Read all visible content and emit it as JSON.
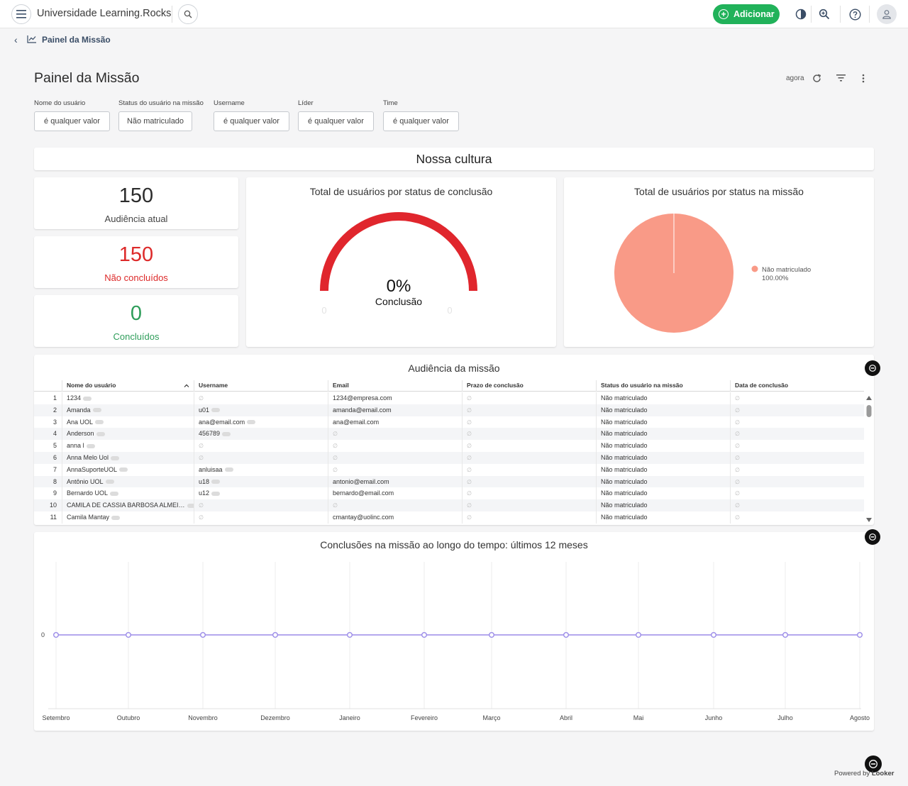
{
  "header": {
    "app_title": "Universidade Learning.Rocks",
    "add_label": "Adicionar"
  },
  "breadcrumb": {
    "label": "Painel da Missão"
  },
  "dashboard": {
    "title": "Painel da Missão",
    "refresh_time": "agora"
  },
  "filters": [
    {
      "label": "Nome do usuário",
      "value": "é qualquer valor"
    },
    {
      "label": "Status do usuário na missão",
      "value": "Não matriculado"
    },
    {
      "label": "Username",
      "value": "é qualquer valor"
    },
    {
      "label": "Líder",
      "value": "é qualquer valor"
    },
    {
      "label": "Time",
      "value": "é qualquer valor"
    }
  ],
  "section_title": "Nossa cultura",
  "kpis": [
    {
      "value": "150",
      "label": "Audiência atual",
      "color": "#2c2c2c"
    },
    {
      "value": "150",
      "label": "Não concluídos",
      "color": "#dd2a2a"
    },
    {
      "value": "0",
      "label": "Concluídos",
      "color": "#2e9d5a"
    }
  ],
  "gauge": {
    "title": "Total de usuários por status de conclusão",
    "value_text": "0%",
    "label": "Conclusão",
    "min_label": "0",
    "max_label": "0",
    "fraction": 0,
    "arc_color": "#e0262d"
  },
  "pie": {
    "title": "Total de usuários por status na missão",
    "legend": [
      {
        "name": "Não matriculado",
        "pct": "100.00%",
        "color": "#f99a87"
      }
    ]
  },
  "table": {
    "title": "Audiência da missão",
    "columns": [
      "Nome do usuário",
      "Username",
      "Email",
      "Prazo de conclusão",
      "Status do usuário na missão",
      "Data de conclusão"
    ],
    "null_glyph": "∅",
    "rows": [
      {
        "n": "1",
        "name": "1234",
        "username": "",
        "email": "1234@empresa.com",
        "status": "Não matriculado"
      },
      {
        "n": "2",
        "name": "Amanda",
        "username": "u01",
        "email": "amanda@email.com",
        "status": "Não matriculado"
      },
      {
        "n": "3",
        "name": "Ana UOL",
        "username": "ana@email.com",
        "email": "ana@email.com",
        "status": "Não matriculado"
      },
      {
        "n": "4",
        "name": "Anderson",
        "username": "456789",
        "email": "",
        "status": "Não matriculado"
      },
      {
        "n": "5",
        "name": "anna l",
        "username": "",
        "email": "",
        "status": "Não matriculado"
      },
      {
        "n": "6",
        "name": "Anna Melo Uol",
        "username": "",
        "email": "",
        "status": "Não matriculado"
      },
      {
        "n": "7",
        "name": "AnnaSuporteUOL",
        "username": "anluisaa",
        "email": "",
        "status": "Não matriculado"
      },
      {
        "n": "8",
        "name": "Antônio UOL",
        "username": "u18",
        "email": "antonio@email.com",
        "status": "Não matriculado"
      },
      {
        "n": "9",
        "name": "Bernardo UOL",
        "username": "u12",
        "email": "bernardo@email.com",
        "status": "Não matriculado"
      },
      {
        "n": "10",
        "name": "CAMILA DE CASSIA BARBOSA ALMEI…",
        "username": "",
        "email": "",
        "status": "Não matriculado"
      },
      {
        "n": "11",
        "name": "Camila Mantay",
        "username": "",
        "email": "cmantay@uolinc.com",
        "status": "Não matriculado"
      }
    ]
  },
  "chart_data": {
    "type": "line",
    "title": "Conclusões na missão ao longo do tempo: últimos 12 meses",
    "categories": [
      "Setembro",
      "Outubro",
      "Novembro",
      "Dezembro",
      "Janeiro",
      "Fevereiro",
      "Março",
      "Abril",
      "Mai",
      "Junho",
      "Julho",
      "Agosto"
    ],
    "series": [
      {
        "values": [
          0,
          0,
          0,
          0,
          0,
          0,
          0,
          0,
          0,
          0,
          0,
          0
        ]
      }
    ],
    "ytick_labels": [
      "0"
    ],
    "xlabel": "",
    "ylabel": "",
    "grid": true,
    "line_color": "#9b8ce8"
  },
  "footer": {
    "powered_by": "Powered by",
    "brand": "Looker"
  }
}
